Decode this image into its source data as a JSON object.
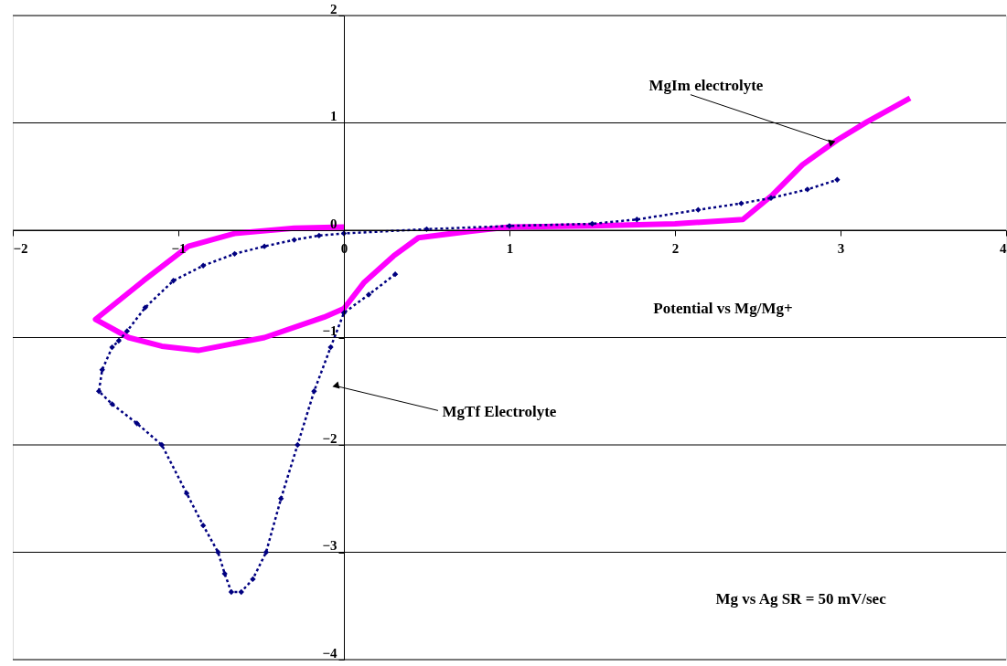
{
  "chart_data": {
    "type": "line",
    "xlabel": "Potential vs Mg/Mg+",
    "xlim": [
      -2,
      4
    ],
    "xticks": [
      -2,
      -1,
      0,
      1,
      2,
      3,
      4
    ],
    "ylim": [
      -4,
      2
    ],
    "yticks": [
      -4,
      -3,
      -2,
      -1,
      0,
      1,
      2
    ],
    "grid": "y",
    "series": [
      {
        "color": "#000080",
        "marker": "diamond",
        "line_style": "dotted",
        "x": [
          0.31,
          0.15,
          0.0,
          -0.08,
          -0.18,
          -0.28,
          -0.38,
          -0.47,
          -0.55,
          -0.62,
          -0.68,
          -0.72,
          -0.76,
          -0.85,
          -0.95,
          -1.1,
          -1.25,
          -1.4,
          -1.48,
          -1.46,
          -1.4,
          -1.36,
          -1.31,
          -1.2,
          -1.03,
          -0.85,
          -0.66,
          -0.48,
          -0.3,
          -0.15,
          0.0,
          0.5,
          1.0,
          1.5,
          1.77,
          2.14,
          2.4,
          2.58,
          2.8,
          2.98
        ],
        "values": [
          -0.41,
          -0.6,
          -0.77,
          -1.09,
          -1.5,
          -2.0,
          -2.5,
          -3.0,
          -3.25,
          -3.37,
          -3.37,
          -3.2,
          -3.0,
          -2.75,
          -2.45,
          -2.0,
          -1.8,
          -1.62,
          -1.5,
          -1.3,
          -1.09,
          -1.03,
          -0.94,
          -0.72,
          -0.47,
          -0.33,
          -0.22,
          -0.15,
          -0.09,
          -0.05,
          -0.03,
          0.01,
          0.04,
          0.06,
          0.1,
          0.19,
          0.25,
          0.3,
          0.38,
          0.47
        ]
      },
      {
        "color": "#ff00ff",
        "marker": "none",
        "line_style": "solid",
        "x": [
          0.0,
          -0.3,
          -0.66,
          -0.94,
          -1.21,
          -1.5,
          -1.3,
          -1.1,
          -0.88,
          -0.48,
          -0.12,
          0.0,
          0.12,
          0.3,
          0.45,
          0.76,
          1.0,
          1.5,
          2.0,
          2.41,
          2.59,
          2.77,
          2.98,
          3.16,
          3.42
        ],
        "values": [
          0.03,
          0.02,
          -0.03,
          -0.15,
          -0.47,
          -0.83,
          -1.0,
          -1.08,
          -1.12,
          -1.0,
          -0.81,
          -0.73,
          -0.49,
          -0.24,
          -0.07,
          -0.01,
          0.03,
          0.04,
          0.06,
          0.1,
          0.33,
          0.61,
          0.84,
          1.01,
          1.23
        ]
      }
    ],
    "annotations": [
      {
        "text": "MgIm electrolyte",
        "x": 2.95,
        "y": 0.82
      },
      {
        "text": "MgTf  Electrolyte",
        "x": -0.05,
        "y": -1.45
      },
      "Mg vs Ag SR = 50 mV/sec"
    ]
  }
}
